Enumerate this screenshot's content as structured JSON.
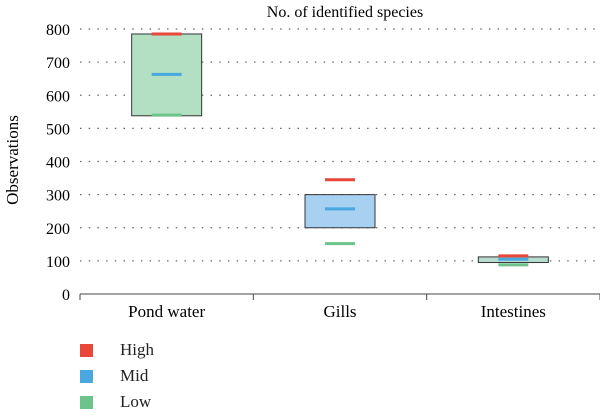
{
  "chart_data": {
    "type": "box",
    "title": "No. of identified species",
    "ylabel": "Observations",
    "xlabel": "",
    "ylim": [
      0,
      800
    ],
    "yticks": [
      "0",
      "100",
      "200",
      "300",
      "400",
      "500",
      "600",
      "700",
      "800"
    ],
    "grid": true,
    "legend_position": "bottom-left",
    "categories": [
      "Pond water",
      "Gills",
      "Intestines"
    ],
    "series": [
      {
        "name": "High",
        "color": "#e8473a",
        "values": [
          785,
          345,
          115
        ]
      },
      {
        "name": "Mid",
        "color": "#4aa8e0",
        "values": [
          663,
          257,
          105
        ]
      },
      {
        "name": "Low",
        "color": "#6cc48a",
        "values": [
          540,
          152,
          88
        ]
      }
    ],
    "boxes": [
      {
        "category": "Pond water",
        "q1": 538,
        "q3": 785,
        "fill": "#b3dfc3"
      },
      {
        "category": "Gills",
        "q1": 200,
        "q3": 300,
        "fill": "#a8d0f0"
      },
      {
        "category": "Intestines",
        "q1": 95,
        "q3": 112,
        "fill": "#b8dcd0"
      }
    ]
  }
}
